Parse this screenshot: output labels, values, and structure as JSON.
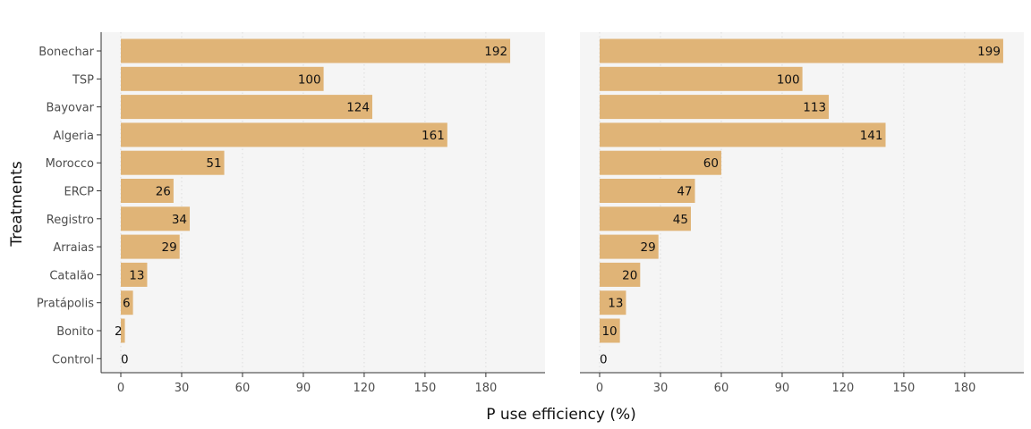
{
  "chart_data": {
    "type": "bar",
    "orientation": "horizontal",
    "xlabel": "P use efficiency (%)",
    "ylabel": "Treatments",
    "xlim": [
      0,
      205
    ],
    "xticks": [
      0,
      30,
      60,
      90,
      120,
      150,
      180
    ],
    "categories": [
      "Bonechar",
      "TSP",
      "Bayovar",
      "Algeria",
      "Morocco",
      "ERCP",
      "Registro",
      "Arraias",
      "Catalão",
      "Pratápolis",
      "Bonito",
      "Control"
    ],
    "grid": "vertical dotted",
    "bar_color": "#e0b477",
    "panels": [
      {
        "values": [
          192,
          100,
          124,
          161,
          51,
          26,
          34,
          29,
          13,
          6,
          2,
          0
        ]
      },
      {
        "values": [
          199,
          100,
          113,
          141,
          60,
          47,
          45,
          29,
          20,
          13,
          10,
          0
        ]
      }
    ]
  }
}
